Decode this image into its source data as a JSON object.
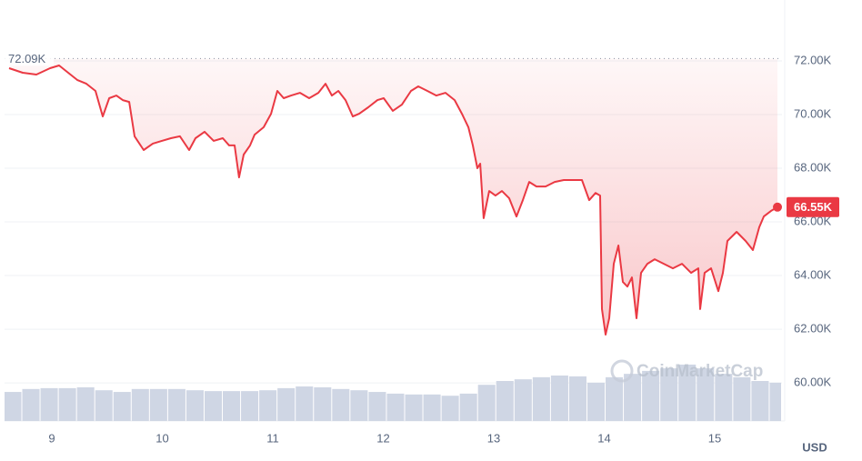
{
  "chart_data": {
    "type": "line",
    "xlim": [
      8.572,
      15.609
    ],
    "xticks": [
      9,
      10,
      11,
      12,
      13,
      14,
      15
    ],
    "ylim": [
      58580,
      74270
    ],
    "yticks": [
      {
        "value": 60000,
        "label": "60.00K"
      },
      {
        "value": 62000,
        "label": "62.00K"
      },
      {
        "value": 64000,
        "label": "64.00K"
      },
      {
        "value": 66000,
        "label": "66.00K"
      },
      {
        "value": 68000,
        "label": "68.00K"
      },
      {
        "value": 70000,
        "label": "70.00K"
      },
      {
        "value": 72000,
        "label": "72.00K"
      }
    ],
    "grid": true,
    "y_unit": "USD",
    "watermark": "CoinMarketCap",
    "reference_line": {
      "value": 72090,
      "label": "72.09K"
    },
    "price_tag": {
      "value": 66550,
      "label": "66.55K"
    },
    "series": [
      {
        "color": "#ea3943",
        "x": [
          8.613,
          8.737,
          8.86,
          8.984,
          9.066,
          9.148,
          9.23,
          9.313,
          9.395,
          9.461,
          9.519,
          9.584,
          9.642,
          9.7,
          9.749,
          9.831,
          9.914,
          9.996,
          10.078,
          10.16,
          10.243,
          10.3,
          10.383,
          10.465,
          10.547,
          10.605,
          10.654,
          10.695,
          10.737,
          10.794,
          10.835,
          10.918,
          10.984,
          11.041,
          11.099,
          11.165,
          11.247,
          11.329,
          11.412,
          11.477,
          11.535,
          11.593,
          11.658,
          11.724,
          11.782,
          11.864,
          11.947,
          12.004,
          12.086,
          12.169,
          12.251,
          12.317,
          12.399,
          12.481,
          12.564,
          12.646,
          12.712,
          12.77,
          12.811,
          12.852,
          12.877,
          12.909,
          12.959,
          13.016,
          13.074,
          13.14,
          13.206,
          13.263,
          13.321,
          13.387,
          13.469,
          13.551,
          13.634,
          13.716,
          13.798,
          13.864,
          13.922,
          13.963,
          13.979,
          14.012,
          14.045,
          14.086,
          14.128,
          14.169,
          14.21,
          14.251,
          14.292,
          14.333,
          14.391,
          14.457,
          14.539,
          14.621,
          14.704,
          14.786,
          14.852,
          14.868,
          14.909,
          14.967,
          15.033,
          15.074,
          15.115,
          15.198,
          15.28,
          15.346,
          15.403,
          15.444,
          15.51,
          15.568
        ],
        "values": [
          71730,
          71560,
          71490,
          71730,
          71830,
          71560,
          71290,
          71150,
          70880,
          69930,
          70610,
          70710,
          70540,
          70470,
          69190,
          68680,
          68920,
          69020,
          69120,
          69190,
          68680,
          69120,
          69360,
          69020,
          69120,
          68850,
          68850,
          67660,
          68510,
          68850,
          69250,
          69530,
          70030,
          70880,
          70610,
          70710,
          70810,
          70610,
          70810,
          71150,
          70710,
          70880,
          70540,
          69930,
          70030,
          70270,
          70540,
          70610,
          70140,
          70370,
          70880,
          71050,
          70880,
          70710,
          70810,
          70540,
          70030,
          69530,
          68850,
          68000,
          68170,
          66140,
          67150,
          66980,
          67150,
          66880,
          66200,
          66810,
          67490,
          67320,
          67320,
          67490,
          67560,
          67560,
          67560,
          66810,
          67080,
          66980,
          62750,
          61800,
          62410,
          64440,
          65120,
          63760,
          63590,
          63930,
          62410,
          64100,
          64440,
          64610,
          64440,
          64270,
          64440,
          64100,
          64270,
          62750,
          64100,
          64270,
          63420,
          64100,
          65290,
          65630,
          65290,
          64950,
          65800,
          66200,
          66410,
          66550
        ]
      }
    ],
    "y2lim": [
      0,
      100
    ],
    "volume": {
      "color": "#cfd6e4",
      "x": [
        8.65,
        8.815,
        8.98,
        9.145,
        9.31,
        9.475,
        9.64,
        9.805,
        9.97,
        10.135,
        10.3,
        10.465,
        10.63,
        10.795,
        10.96,
        11.125,
        11.29,
        11.455,
        11.62,
        11.785,
        11.95,
        12.115,
        12.28,
        12.445,
        12.61,
        12.775,
        12.94,
        13.105,
        13.27,
        13.435,
        13.6,
        13.765,
        13.93,
        14.095,
        14.26,
        14.425,
        14.59,
        14.755,
        14.92,
        15.085,
        15.25,
        15.415,
        15.58
      ],
      "values": [
        6.9,
        7.6,
        7.8,
        7.8,
        8.0,
        7.3,
        6.9,
        7.6,
        7.6,
        7.6,
        7.3,
        7.1,
        7.1,
        7.1,
        7.3,
        7.8,
        8.2,
        8.0,
        7.6,
        7.3,
        6.9,
        6.5,
        6.3,
        6.3,
        6.0,
        6.5,
        8.6,
        9.5,
        9.9,
        10.4,
        10.8,
        10.6,
        9.1,
        10.4,
        11.2,
        11.9,
        12.5,
        13.4,
        12.5,
        11.2,
        10.4,
        9.5,
        9.1
      ]
    }
  }
}
